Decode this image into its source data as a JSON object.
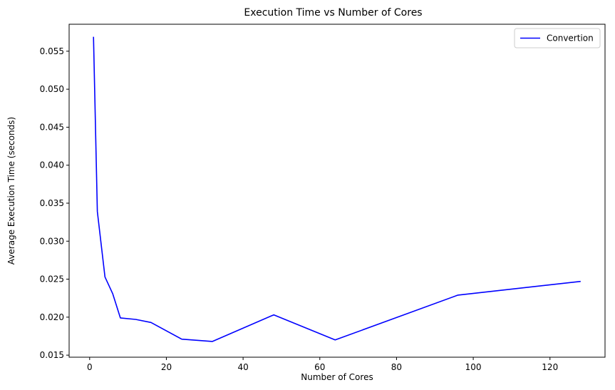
{
  "chart_data": {
    "type": "line",
    "title": "Execution Time vs Number of Cores",
    "xlabel": "Number of Cores",
    "ylabel": "Average Execution Time (seconds)",
    "xlim": [
      -5.35,
      134.35
    ],
    "ylim": [
      0.01473,
      0.05855
    ],
    "xticks": [
      0,
      20,
      40,
      60,
      80,
      100,
      120
    ],
    "xtick_labels": [
      "0",
      "20",
      "40",
      "60",
      "80",
      "100",
      "120"
    ],
    "yticks": [
      0.015,
      0.02,
      0.025,
      0.03,
      0.035,
      0.04,
      0.045,
      0.05,
      0.055
    ],
    "ytick_labels": [
      "0.015",
      "0.020",
      "0.025",
      "0.030",
      "0.035",
      "0.040",
      "0.045",
      "0.050",
      "0.055"
    ],
    "grid": false,
    "legend_position": "top-right",
    "series": [
      {
        "name": "Convertion",
        "color": "#0000ff",
        "x": [
          1,
          2,
          4,
          6,
          8,
          12,
          16,
          24,
          32,
          48,
          64,
          96,
          128
        ],
        "y": [
          0.0569,
          0.0339,
          0.0253,
          0.0231,
          0.0199,
          0.0197,
          0.0193,
          0.0171,
          0.0168,
          0.0203,
          0.017,
          0.0229,
          0.0247
        ]
      }
    ]
  }
}
